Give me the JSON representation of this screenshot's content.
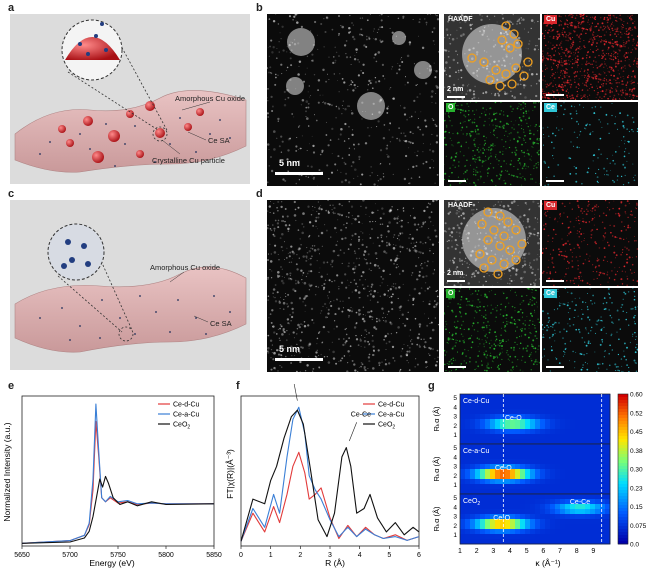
{
  "panels": {
    "a": {
      "letter": "a",
      "labels": {
        "amorphous": "Amorphous Cu oxide",
        "ce_sa": "Ce SA",
        "crystalline": "Crystalline Cu particle"
      }
    },
    "b": {
      "letter": "b",
      "scale_main": "5 nm",
      "scale_inset": "2 nm",
      "maps": [
        "HAADF",
        "Cu",
        "O",
        "Ce"
      ]
    },
    "c": {
      "letter": "c",
      "labels": {
        "amorphous": "Amorphous Cu oxide",
        "ce_sa": "Ce SA"
      }
    },
    "d": {
      "letter": "d",
      "scale_main": "5 nm",
      "scale_inset": "2 nm",
      "maps": [
        "HAADF",
        "Cu",
        "O",
        "Ce"
      ]
    },
    "e": {
      "letter": "e"
    },
    "f": {
      "letter": "f"
    },
    "g": {
      "letter": "g"
    }
  },
  "colors": {
    "cu_ed": "#e23b3b",
    "cu_ea": "#3a7fd6",
    "ceo2": "#111111",
    "cu_map": "#d8262c",
    "o_map": "#27b12e",
    "ce_map": "#2fc6d6",
    "circle": "#f0a020"
  },
  "chart_data": [
    {
      "type": "line",
      "id": "e",
      "xlabel": "Energy (eV)",
      "ylabel": "Normalized Intensity (a.u.)",
      "xlim": [
        5650,
        5850
      ],
      "x_ticks": [
        5650,
        5700,
        5750,
        5800,
        5850
      ],
      "legend_position": "top-right",
      "series": [
        {
          "name": "Ce-d-Cu",
          "x": [
            5650,
            5700,
            5715,
            5720,
            5724,
            5727,
            5730,
            5733,
            5737,
            5742,
            5750,
            5760,
            5770,
            5785,
            5800,
            5850
          ],
          "y": [
            0.02,
            0.04,
            0.08,
            0.16,
            0.42,
            0.93,
            0.66,
            0.36,
            0.33,
            0.36,
            0.32,
            0.33,
            0.31,
            0.32,
            0.315,
            0.315
          ]
        },
        {
          "name": "Ce-a-Cu",
          "x": [
            5650,
            5700,
            5715,
            5720,
            5724,
            5727,
            5730,
            5733,
            5737,
            5742,
            5750,
            5760,
            5770,
            5785,
            5800,
            5850
          ],
          "y": [
            0.02,
            0.04,
            0.08,
            0.17,
            0.5,
            1.06,
            0.7,
            0.36,
            0.33,
            0.37,
            0.33,
            0.34,
            0.315,
            0.32,
            0.315,
            0.315
          ]
        },
        {
          "name": "CeO2",
          "x": [
            5650,
            5700,
            5715,
            5720,
            5724,
            5728,
            5731,
            5734,
            5737,
            5740,
            5745,
            5752,
            5760,
            5770,
            5785,
            5800,
            5850
          ],
          "y": [
            0.02,
            0.03,
            0.06,
            0.11,
            0.22,
            0.38,
            0.5,
            0.44,
            0.52,
            0.47,
            0.36,
            0.31,
            0.33,
            0.3,
            0.33,
            0.31,
            0.315
          ]
        }
      ]
    },
    {
      "type": "line",
      "id": "f",
      "xlabel": "R (Å)",
      "ylabel": "FT|χ(R)|(Å⁻³)",
      "xlim": [
        0,
        6
      ],
      "x_ticks": [
        0,
        1,
        2,
        3,
        4,
        5,
        6
      ],
      "legend_position": "top-right",
      "annotations": [
        "Ce-O",
        "Ce-Ce"
      ],
      "series": [
        {
          "name": "Ce-d-Cu",
          "x": [
            0,
            0.4,
            0.8,
            1.1,
            1.3,
            1.55,
            1.75,
            1.95,
            2.15,
            2.3,
            2.5,
            2.7,
            3.0,
            3.3,
            3.6,
            3.9,
            4.2,
            4.5,
            4.8,
            5.2,
            5.6,
            6.0
          ],
          "y": [
            0.05,
            0.35,
            0.15,
            0.42,
            0.25,
            0.55,
            0.85,
            1.0,
            0.78,
            0.5,
            0.55,
            0.62,
            0.3,
            0.08,
            0.22,
            0.1,
            0.2,
            0.12,
            0.08,
            0.12,
            0.06,
            0.1
          ]
        },
        {
          "name": "Ce-a-Cu",
          "x": [
            0,
            0.4,
            0.8,
            1.1,
            1.3,
            1.55,
            1.75,
            1.95,
            2.15,
            2.3,
            2.5,
            2.7,
            3.0,
            3.3,
            3.6,
            3.9,
            4.2,
            4.5,
            4.8,
            5.2,
            5.6,
            6.0
          ],
          "y": [
            0.05,
            0.4,
            0.2,
            0.55,
            0.35,
            0.95,
            1.35,
            1.48,
            1.2,
            0.75,
            0.6,
            0.5,
            0.28,
            0.1,
            0.2,
            0.1,
            0.18,
            0.12,
            0.08,
            0.1,
            0.06,
            0.1
          ]
        },
        {
          "name": "CeO2",
          "x": [
            0,
            0.4,
            0.8,
            1.0,
            1.2,
            1.45,
            1.7,
            1.9,
            2.1,
            2.35,
            2.6,
            2.9,
            3.15,
            3.4,
            3.55,
            3.7,
            3.9,
            4.15,
            4.35,
            4.6,
            4.9,
            5.2,
            5.5,
            5.8,
            6.0
          ],
          "y": [
            0.05,
            0.5,
            0.45,
            0.7,
            0.85,
            1.15,
            1.38,
            1.45,
            1.3,
            0.8,
            0.28,
            0.1,
            0.35,
            0.95,
            1.05,
            0.85,
            0.35,
            0.4,
            0.55,
            0.3,
            0.15,
            0.25,
            0.12,
            0.2,
            0.15
          ]
        }
      ]
    },
    {
      "type": "heatmap",
      "id": "g",
      "xlabel": "κ (Å⁻¹)",
      "ylabel": "Rₖα (Å)",
      "xlim": [
        1,
        10
      ],
      "x_ticks": [
        1,
        2,
        3,
        4,
        5,
        6,
        7,
        8,
        9
      ],
      "y_ticks": [
        1,
        2,
        3,
        4,
        5
      ],
      "colorbar_ticks": [
        "0.60",
        "0.52",
        "0.45",
        "0.38",
        "0.30",
        "0.23",
        "0.15",
        "0.075",
        "0.0"
      ],
      "rows": [
        {
          "name": "Ce-d-Cu",
          "peaks": [
            {
              "label": "Ce-O",
              "k": 4.2,
              "r": 2.0,
              "amp": 0.3
            }
          ]
        },
        {
          "name": "Ce-a-Cu",
          "peaks": [
            {
              "label": "Ce-O",
              "k": 3.6,
              "r": 2.0,
              "amp": 0.55
            }
          ]
        },
        {
          "name": "CeO2",
          "peaks": [
            {
              "label": "Ce-O",
              "k": 3.5,
              "r": 2.0,
              "amp": 0.45
            },
            {
              "label": "Ce-Ce",
              "k": 8.2,
              "r": 3.6,
              "amp": 0.22
            }
          ]
        }
      ]
    }
  ]
}
